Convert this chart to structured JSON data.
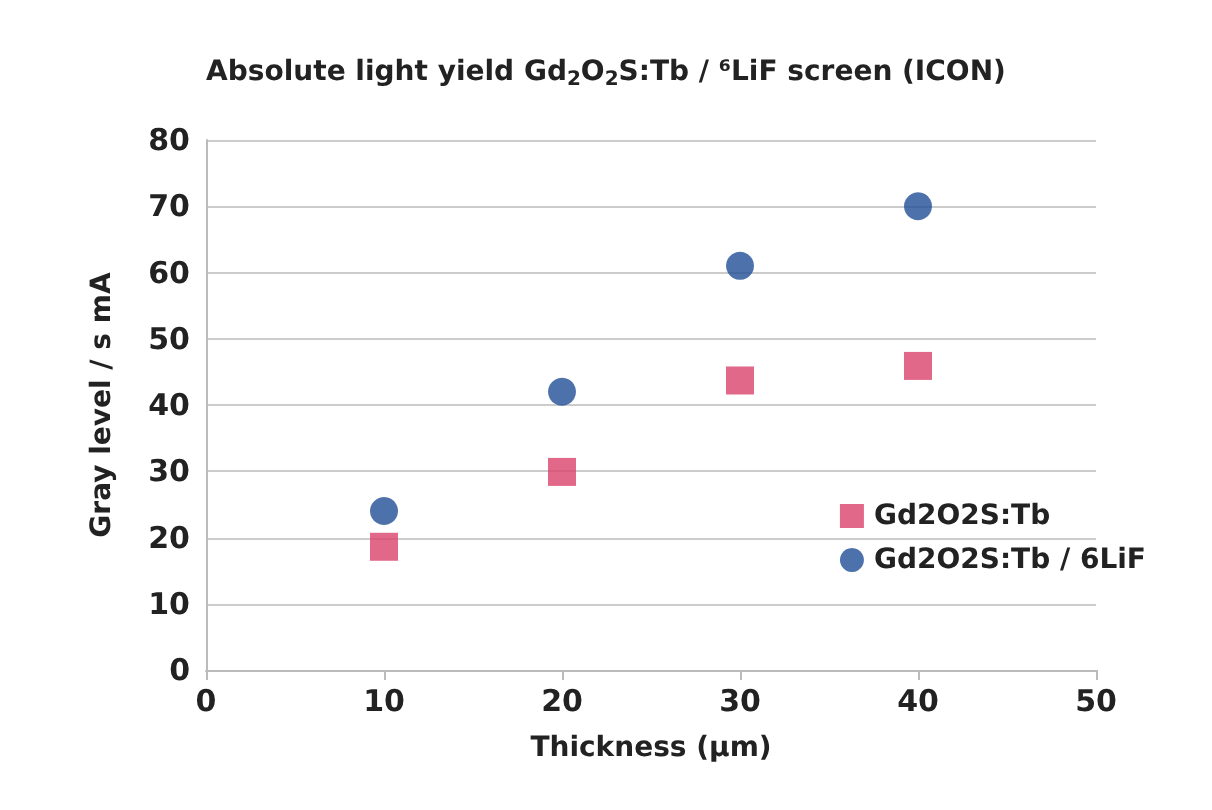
{
  "chart_data": {
    "type": "scatter",
    "title": "Absolute light yield Gd$_{2}$O$_{2}$S:Tb / ⁶LiF screen (ICON)",
    "xlabel": "Thickness (μm)",
    "ylabel": "Gray level / s mA",
    "x": [
      10,
      20,
      30,
      40
    ],
    "series": [
      {
        "name": "Gd2O2S:Tb",
        "color": "#d9426a",
        "marker": "square",
        "values": [
          18.6,
          29.9,
          43.7,
          45.9
        ]
      },
      {
        "name": "Gd2O2S:Tb / 6LiF",
        "color": "#1f4e96",
        "marker": "circle",
        "values": [
          24,
          42,
          61,
          70
        ]
      }
    ],
    "xlim": [
      0,
      50
    ],
    "xticks": [
      0,
      10,
      20,
      30,
      40,
      50
    ],
    "ylim": [
      0,
      80
    ],
    "yticks": [
      0,
      10,
      20,
      30,
      40,
      50,
      60,
      70,
      80
    ],
    "grid": "y",
    "legend": "right"
  }
}
